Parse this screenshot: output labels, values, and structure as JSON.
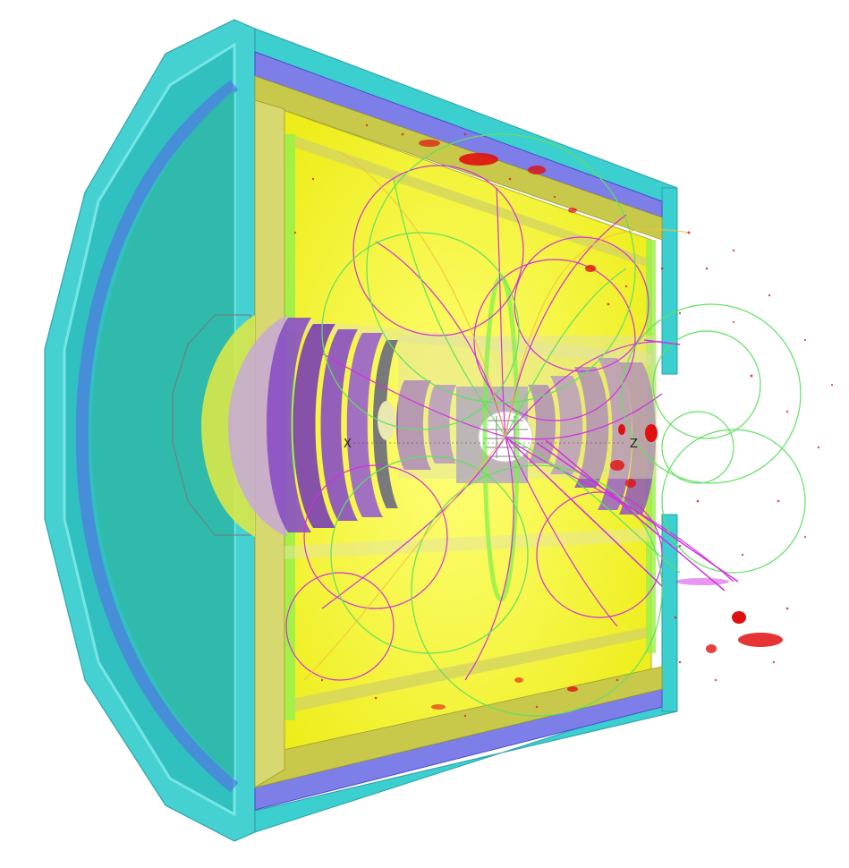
{
  "scene": {
    "axis_labels": {
      "x": "X",
      "z": "Z"
    },
    "colors": {
      "background": "#ffffff",
      "outer_shell": "#3ccfcf",
      "outer_shell_edge": "#2a9fa8",
      "inner_shell": "#7e7ee8",
      "inner_shell_edge": "#4a4ad0",
      "solenoid": "#f2f22a",
      "solenoid_dark": "#c8c84a",
      "light_green": "#9af04a",
      "endcap_disk": "#8a4fc4",
      "endcap_disk_light": "#b08ad8",
      "beam_pipe": "#e8e8b0",
      "hits": "#e01010",
      "track_magenta": "#d030e0",
      "track_green": "#60e060",
      "track_yellow": "#f0e040"
    }
  }
}
